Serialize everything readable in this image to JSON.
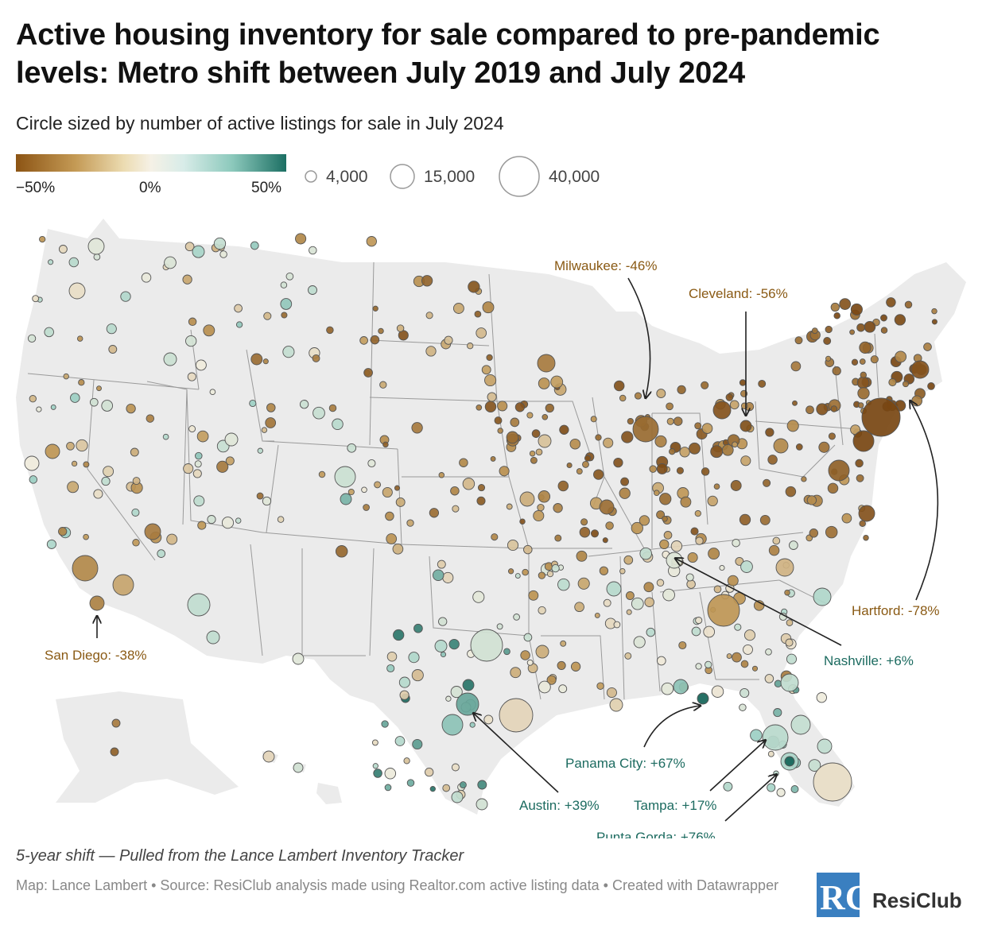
{
  "title": "Active housing inventory for sale compared to pre-pandemic levels: Metro shift between July 2019 and July 2024",
  "subtitle": "Circle sized by number of active listings for sale in July 2024",
  "color_legend": {
    "min_label": "−50%",
    "mid_label": "0%",
    "max_label": "50%",
    "low_color": "#8c5414",
    "mid_color": "#f5f1e6",
    "high_color": "#1c6f63"
  },
  "size_legend": {
    "small": "4,000",
    "medium": "15,000",
    "large": "40,000"
  },
  "colors": {
    "land": "#ebebeb",
    "state_border": "#9a9a9a",
    "decline_label": "#8a5a14",
    "growth_label": "#1c6b60"
  },
  "annotations": [
    {
      "id": "milwaukee",
      "label": "Milwaukee: -46%",
      "trend": "decline"
    },
    {
      "id": "cleveland",
      "label": "Cleveland: -56%",
      "trend": "decline"
    },
    {
      "id": "san-diego",
      "label": "San Diego: -38%",
      "trend": "decline"
    },
    {
      "id": "hartford",
      "label": "Hartford: -78%",
      "trend": "decline"
    },
    {
      "id": "nashville",
      "label": "Nashville: +6%",
      "trend": "growth"
    },
    {
      "id": "panama-city",
      "label": "Panama City: +67%",
      "trend": "growth"
    },
    {
      "id": "austin",
      "label": "Austin: +39%",
      "trend": "growth"
    },
    {
      "id": "tampa",
      "label": "Tampa: +17%",
      "trend": "growth"
    },
    {
      "id": "punta-gorda",
      "label": "Punta Gorda: +76%",
      "trend": "growth"
    }
  ],
  "note": "5-year shift — Pulled from the Lance Lambert Inventory Tracker",
  "source": "Map: Lance Lambert • Source: ResiClub analysis made using Realtor.com active listing data • Created with Datawrapper",
  "brand": {
    "logo_text": "RC",
    "name": "ResiClub"
  }
}
